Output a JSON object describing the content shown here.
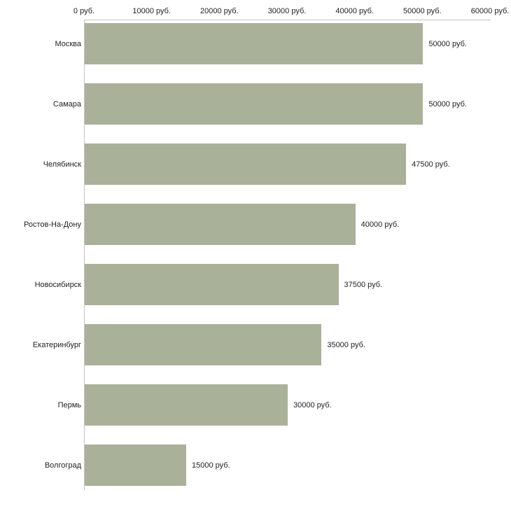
{
  "chart_data": {
    "type": "bar",
    "orientation": "horizontal",
    "title": "",
    "xlabel": "",
    "ylabel": "",
    "categories": [
      "Москва",
      "Самара",
      "Челябинск",
      "Ростов-На-Дону",
      "Новосибирск",
      "Екатеринбург",
      "Пермь",
      "Волгоград"
    ],
    "values": [
      50000,
      50000,
      47500,
      40000,
      37500,
      35000,
      30000,
      15000
    ],
    "value_labels": [
      "50000 руб.",
      "50000 руб.",
      "47500 руб.",
      "40000 руб.",
      "37500 руб.",
      "35000 руб.",
      "30000 руб.",
      "15000 руб."
    ],
    "x_ticks": [
      {
        "value": 0,
        "label": "0 руб."
      },
      {
        "value": 10000,
        "label": "10000 руб."
      },
      {
        "value": 20000,
        "label": "20000 руб."
      },
      {
        "value": 30000,
        "label": "30000 руб."
      },
      {
        "value": 40000,
        "label": "40000 руб."
      },
      {
        "value": 50000,
        "label": "50000 руб."
      },
      {
        "value": 60000,
        "label": "60000 руб."
      }
    ],
    "xlim": [
      0,
      60000
    ],
    "grid": false,
    "legend": false,
    "bar_color": "#a9b199",
    "axis_color": "#c3c3c3",
    "text_color": "#222222",
    "background_color": "#ffffff"
  }
}
